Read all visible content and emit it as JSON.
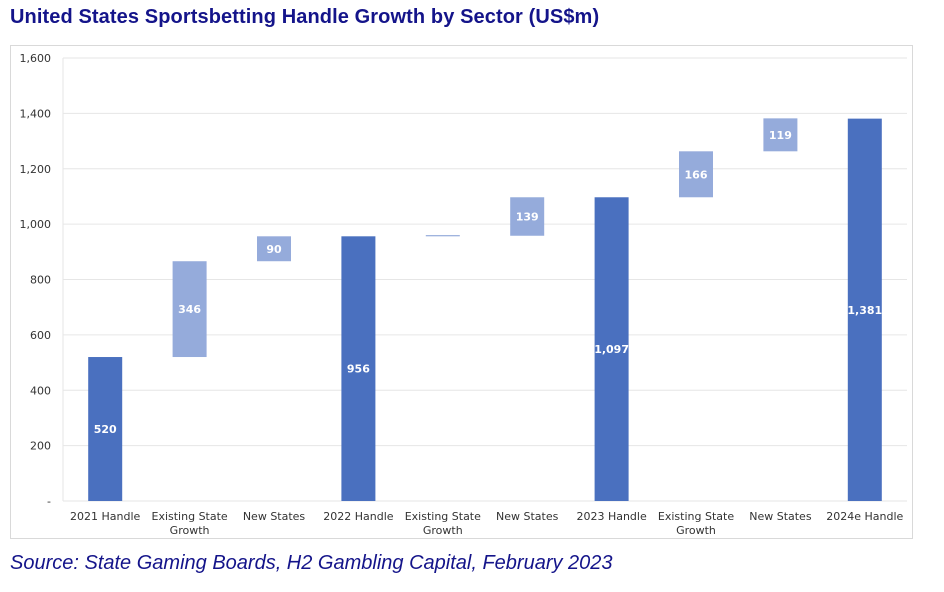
{
  "title": "United States Sportsbetting Handle Growth by Sector (US$m)",
  "source": "Source: State Gaming Boards, H2 Gambling Capital, February 2023",
  "chart_data": {
    "type": "waterfall",
    "ylim": [
      0,
      1600
    ],
    "y_ticks": [
      0,
      200,
      400,
      600,
      800,
      1000,
      1200,
      1400,
      1600
    ],
    "y_tick_labels": [
      "-",
      "200",
      "400",
      "600",
      "800",
      "1,000",
      "1,200",
      "1,400",
      "1,600"
    ],
    "grid": true,
    "colors": {
      "total": "#4a70bf",
      "increment": "#95abdb",
      "grid": "#e6e6e6",
      "axis_text": "#333333",
      "label_text": "#ffffff"
    },
    "categories": [
      [
        "2021 Handle"
      ],
      [
        "Existing State",
        "Growth"
      ],
      [
        "New States"
      ],
      [
        "2022 Handle"
      ],
      [
        "Existing State",
        "Growth"
      ],
      [
        "New States"
      ],
      [
        "2023 Handle"
      ],
      [
        "Existing State",
        "Growth"
      ],
      [
        "New States"
      ],
      [
        "2024e Handle"
      ]
    ],
    "bars": [
      {
        "kind": "total",
        "base": 0,
        "value": 520,
        "label": "520"
      },
      {
        "kind": "increment",
        "base": 520,
        "value": 346,
        "label": "346"
      },
      {
        "kind": "increment",
        "base": 866,
        "value": 90,
        "label": "90"
      },
      {
        "kind": "total",
        "base": 0,
        "value": 956,
        "label": "956"
      },
      {
        "kind": "increment",
        "base": 956,
        "value": 2,
        "label": ""
      },
      {
        "kind": "increment",
        "base": 958,
        "value": 139,
        "label": "139"
      },
      {
        "kind": "total",
        "base": 0,
        "value": 1097,
        "label": "1,097"
      },
      {
        "kind": "increment",
        "base": 1097,
        "value": 166,
        "label": "166"
      },
      {
        "kind": "increment",
        "base": 1263,
        "value": 119,
        "label": "119"
      },
      {
        "kind": "total",
        "base": 0,
        "value": 1381,
        "label": "1,381"
      }
    ]
  }
}
